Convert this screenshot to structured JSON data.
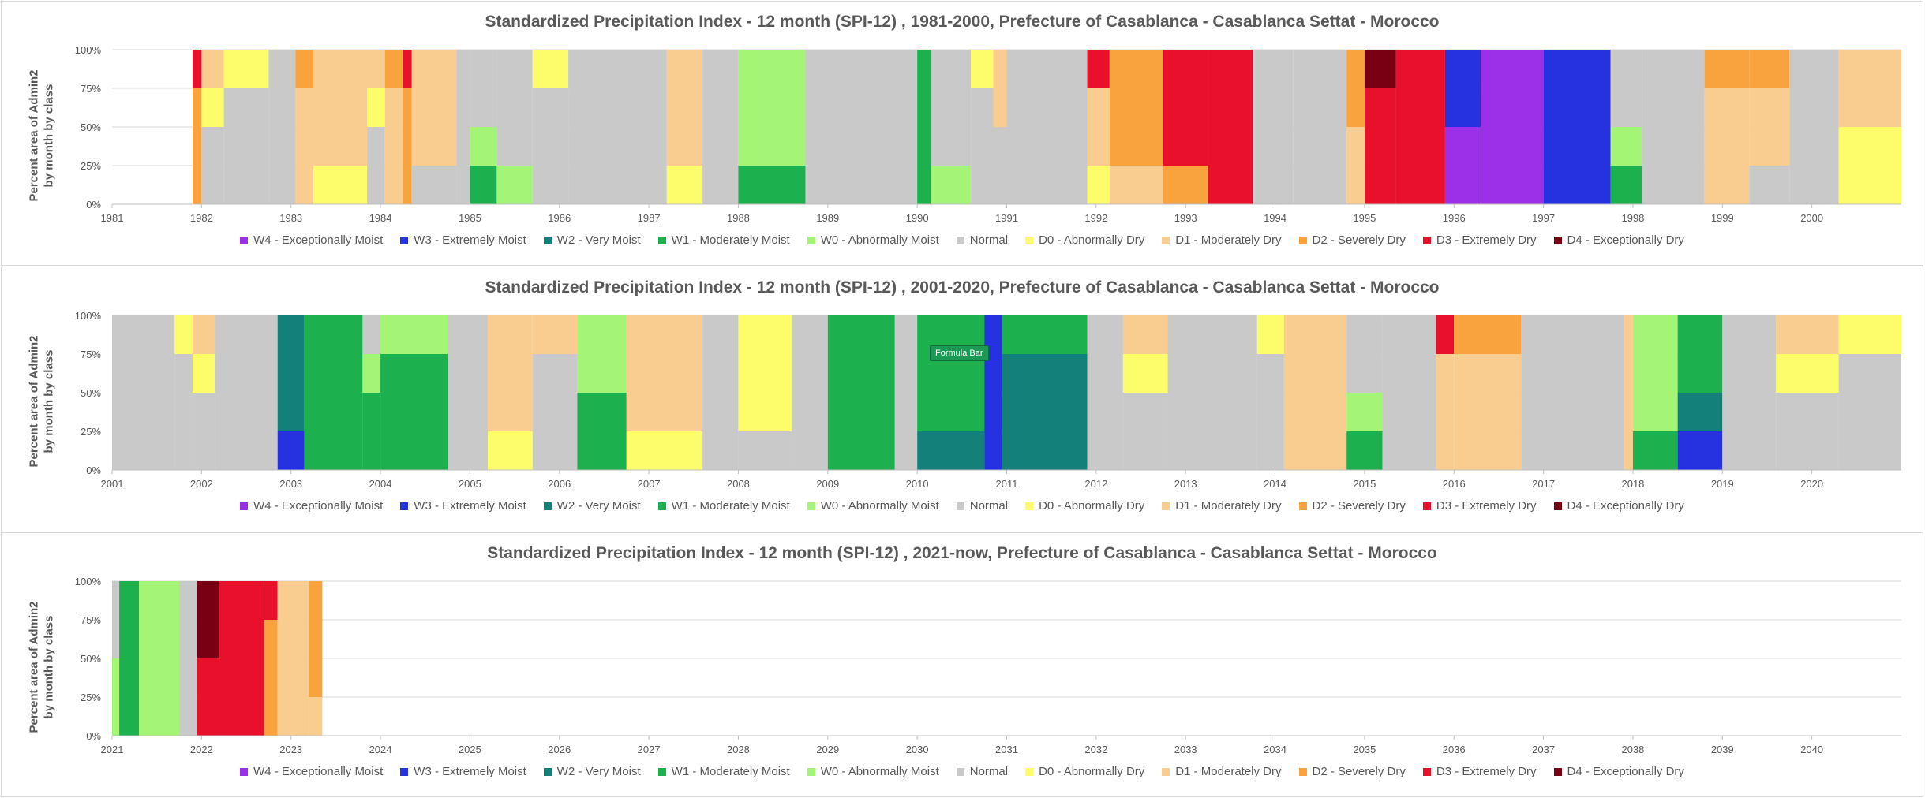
{
  "page": {
    "ylabel_line1": "Percent area of Admin2",
    "ylabel_line2": "by month by class",
    "tooltip": "Formula Bar"
  },
  "legend": [
    {
      "code": "W4",
      "label": "W4 - Exceptionally Moist",
      "color": "#9b30e8"
    },
    {
      "code": "W3",
      "label": "W3 - Extremely Moist",
      "color": "#2631e0"
    },
    {
      "code": "W2",
      "label": "W2 - Very Moist",
      "color": "#13807a"
    },
    {
      "code": "W1",
      "label": "W1 - Moderately Moist",
      "color": "#1db04e"
    },
    {
      "code": "W0",
      "label": "W0 - Abnormally Moist",
      "color": "#a4f576"
    },
    {
      "code": "N",
      "label": "Normal",
      "color": "#c9c9c9"
    },
    {
      "code": "D0",
      "label": "D0 - Abnormally Dry",
      "color": "#fdfc6a"
    },
    {
      "code": "D1",
      "label": "D1 - Moderately Dry",
      "color": "#f9cd8f"
    },
    {
      "code": "D2",
      "label": "D2 - Severely Dry",
      "color": "#f9a33f"
    },
    {
      "code": "D3",
      "label": "D3 - Extremely Dry",
      "color": "#e8102a"
    },
    {
      "code": "D4",
      "label": "D4 - Exceptionally Dry",
      "color": "#780012"
    }
  ],
  "chart_data": [
    {
      "type": "area",
      "stacked": true,
      "title": "Standardized Precipitation Index - 12 month (SPI-12) , 1981-2000, Prefecture of Casablanca - Casablanca Settat - Morocco",
      "ylabel": "Percent area of Admin2 by month by class",
      "ylim": [
        0,
        100
      ],
      "yticks": [
        "0%",
        "25%",
        "50%",
        "75%",
        "100%"
      ],
      "xlim": [
        1981,
        2001
      ],
      "xticks": [
        "1981",
        "1982",
        "1983",
        "1984",
        "1985",
        "1986",
        "1987",
        "1988",
        "1989",
        "1990",
        "1991",
        "1992",
        "1993",
        "1994",
        "1995",
        "1996",
        "1997",
        "1998",
        "1999",
        "2000"
      ],
      "grid": true,
      "legend_position": "bottom",
      "periods": [
        {
          "from": 1981.0,
          "to": 1981.9,
          "classes": {}
        },
        {
          "from": 1981.9,
          "to": 1982.0,
          "classes": {
            "D2": 75,
            "D3": 25
          }
        },
        {
          "from": 1982.0,
          "to": 1982.25,
          "classes": {
            "N": 50,
            "D0": 25,
            "D1": 25
          }
        },
        {
          "from": 1982.25,
          "to": 1982.75,
          "classes": {
            "N": 75,
            "D0": 25
          }
        },
        {
          "from": 1982.75,
          "to": 1983.05,
          "classes": {
            "N": 100
          }
        },
        {
          "from": 1983.05,
          "to": 1983.25,
          "classes": {
            "D1": 75,
            "D2": 25
          }
        },
        {
          "from": 1983.25,
          "to": 1983.85,
          "classes": {
            "D0": 25,
            "D1": 75
          }
        },
        {
          "from": 1983.85,
          "to": 1984.05,
          "classes": {
            "N": 50,
            "D0": 25,
            "D1": 25
          }
        },
        {
          "from": 1984.05,
          "to": 1984.25,
          "classes": {
            "D1": 75,
            "D2": 25
          }
        },
        {
          "from": 1984.25,
          "to": 1984.35,
          "classes": {
            "D2": 75,
            "D3": 25
          }
        },
        {
          "from": 1984.35,
          "to": 1984.85,
          "classes": {
            "N": 25,
            "D1": 75
          }
        },
        {
          "from": 1984.85,
          "to": 1985.0,
          "classes": {
            "N": 100
          }
        },
        {
          "from": 1985.0,
          "to": 1985.3,
          "classes": {
            "W1": 25,
            "W0": 25,
            "N": 50
          }
        },
        {
          "from": 1985.3,
          "to": 1985.7,
          "classes": {
            "W0": 25,
            "N": 75
          }
        },
        {
          "from": 1985.7,
          "to": 1986.1,
          "classes": {
            "N": 75,
            "D0": 25
          }
        },
        {
          "from": 1986.1,
          "to": 1987.2,
          "classes": {
            "N": 100
          }
        },
        {
          "from": 1987.2,
          "to": 1987.6,
          "classes": {
            "D0": 25,
            "D1": 75
          }
        },
        {
          "from": 1987.6,
          "to": 1988.0,
          "classes": {
            "N": 100
          }
        },
        {
          "from": 1988.0,
          "to": 1988.75,
          "classes": {
            "W1": 25,
            "W0": 75
          }
        },
        {
          "from": 1988.75,
          "to": 1990.0,
          "classes": {
            "N": 100
          }
        },
        {
          "from": 1990.0,
          "to": 1990.15,
          "classes": {
            "W1": 100
          }
        },
        {
          "from": 1990.15,
          "to": 1990.6,
          "classes": {
            "W0": 25,
            "N": 75
          }
        },
        {
          "from": 1990.6,
          "to": 1990.85,
          "classes": {
            "N": 75,
            "D0": 25
          }
        },
        {
          "from": 1990.85,
          "to": 1991.0,
          "classes": {
            "N": 50,
            "D1": 50
          }
        },
        {
          "from": 1991.0,
          "to": 1991.9,
          "classes": {
            "N": 100
          }
        },
        {
          "from": 1991.9,
          "to": 1992.15,
          "classes": {
            "D0": 25,
            "D1": 50,
            "D3": 25
          }
        },
        {
          "from": 1992.15,
          "to": 1992.75,
          "classes": {
            "D2": 75,
            "D1": 25
          }
        },
        {
          "from": 1992.75,
          "to": 1993.25,
          "classes": {
            "D3": 75,
            "D2": 25
          }
        },
        {
          "from": 1993.25,
          "to": 1993.75,
          "classes": {
            "D3": 100
          }
        },
        {
          "from": 1993.75,
          "to": 1994.2,
          "classes": {
            "N": 100
          }
        },
        {
          "from": 1994.2,
          "to": 1994.8,
          "classes": {
            "N": 100
          }
        },
        {
          "from": 1994.8,
          "to": 1995.0,
          "classes": {
            "D2": 50,
            "D1": 50
          }
        },
        {
          "from": 1995.0,
          "to": 1995.35,
          "classes": {
            "D3": 75,
            "D4": 25
          }
        },
        {
          "from": 1995.35,
          "to": 1995.9,
          "classes": {
            "D3": 100
          }
        },
        {
          "from": 1995.9,
          "to": 1996.3,
          "classes": {
            "W4": 50,
            "W3": 50
          }
        },
        {
          "from": 1996.3,
          "to": 1997.0,
          "classes": {
            "W4": 100
          }
        },
        {
          "from": 1997.0,
          "to": 1997.75,
          "classes": {
            "W3": 100
          }
        },
        {
          "from": 1997.75,
          "to": 1998.1,
          "classes": {
            "W1": 25,
            "W0": 25,
            "N": 50
          }
        },
        {
          "from": 1998.1,
          "to": 1998.8,
          "classes": {
            "N": 100
          }
        },
        {
          "from": 1998.8,
          "to": 1999.3,
          "classes": {
            "D1": 75,
            "D2": 25
          }
        },
        {
          "from": 1999.3,
          "to": 1999.75,
          "classes": {
            "D1": 50,
            "D2": 25,
            "N": 25
          }
        },
        {
          "from": 1999.75,
          "to": 2000.3,
          "classes": {
            "N": 100
          }
        },
        {
          "from": 2000.3,
          "to": 2001.0,
          "classes": {
            "D0": 50,
            "D1": 50
          }
        }
      ]
    },
    {
      "type": "area",
      "stacked": true,
      "title": "Standardized Precipitation Index - 12 month (SPI-12) , 2001-2020, Prefecture of Casablanca - Casablanca Settat - Morocco",
      "ylabel": "Percent area of Admin2 by month by class",
      "ylim": [
        0,
        100
      ],
      "yticks": [
        "0%",
        "25%",
        "50%",
        "75%",
        "100%"
      ],
      "xlim": [
        2001,
        2021
      ],
      "xticks": [
        "2001",
        "2002",
        "2003",
        "2004",
        "2005",
        "2006",
        "2007",
        "2008",
        "2009",
        "2010",
        "2011",
        "2012",
        "2013",
        "2014",
        "2015",
        "2016",
        "2017",
        "2018",
        "2019",
        "2020"
      ],
      "grid": true,
      "legend_position": "bottom",
      "periods": [
        {
          "from": 2001.0,
          "to": 2001.7,
          "classes": {
            "N": 100
          }
        },
        {
          "from": 2001.7,
          "to": 2001.9,
          "classes": {
            "N": 75,
            "D0": 25
          }
        },
        {
          "from": 2001.9,
          "to": 2002.15,
          "classes": {
            "D0": 25,
            "D1": 25,
            "N": 50
          }
        },
        {
          "from": 2002.15,
          "to": 2002.85,
          "classes": {
            "N": 100
          }
        },
        {
          "from": 2002.85,
          "to": 2003.15,
          "classes": {
            "W3": 25,
            "W2": 75
          }
        },
        {
          "from": 2003.15,
          "to": 2003.8,
          "classes": {
            "W1": 100
          }
        },
        {
          "from": 2003.8,
          "to": 2004.0,
          "classes": {
            "W0": 25,
            "W1": 50,
            "N": 25
          }
        },
        {
          "from": 2004.0,
          "to": 2004.75,
          "classes": {
            "W1": 75,
            "W0": 25
          }
        },
        {
          "from": 2004.75,
          "to": 2005.2,
          "classes": {
            "N": 100
          }
        },
        {
          "from": 2005.2,
          "to": 2005.7,
          "classes": {
            "D0": 25,
            "D1": 75
          }
        },
        {
          "from": 2005.7,
          "to": 2006.2,
          "classes": {
            "N": 75,
            "D1": 25
          }
        },
        {
          "from": 2006.2,
          "to": 2006.75,
          "classes": {
            "W1": 50,
            "W0": 50
          }
        },
        {
          "from": 2006.75,
          "to": 2007.6,
          "classes": {
            "D0": 25,
            "D1": 75
          }
        },
        {
          "from": 2007.6,
          "to": 2008.0,
          "classes": {
            "N": 100
          }
        },
        {
          "from": 2008.0,
          "to": 2008.6,
          "classes": {
            "N": 25,
            "D0": 75
          }
        },
        {
          "from": 2008.6,
          "to": 2009.0,
          "classes": {
            "N": 100
          }
        },
        {
          "from": 2009.0,
          "to": 2009.75,
          "classes": {
            "W1": 100
          }
        },
        {
          "from": 2009.75,
          "to": 2010.0,
          "classes": {
            "N": 100
          }
        },
        {
          "from": 2010.0,
          "to": 2010.75,
          "classes": {
            "W1": 75,
            "W2": 25
          }
        },
        {
          "from": 2010.75,
          "to": 2010.95,
          "classes": {
            "W3": 100
          }
        },
        {
          "from": 2010.95,
          "to": 2011.9,
          "classes": {
            "W2": 75,
            "W1": 25
          }
        },
        {
          "from": 2011.9,
          "to": 2012.3,
          "classes": {
            "N": 100
          }
        },
        {
          "from": 2012.3,
          "to": 2012.8,
          "classes": {
            "D0": 25,
            "D1": 25,
            "N": 50
          }
        },
        {
          "from": 2012.8,
          "to": 2013.8,
          "classes": {
            "N": 100
          }
        },
        {
          "from": 2013.8,
          "to": 2014.1,
          "classes": {
            "N": 75,
            "D0": 25
          }
        },
        {
          "from": 2014.1,
          "to": 2014.8,
          "classes": {
            "D1": 100
          }
        },
        {
          "from": 2014.8,
          "to": 2015.2,
          "classes": {
            "W1": 25,
            "W0": 25,
            "N": 50
          }
        },
        {
          "from": 2015.2,
          "to": 2015.8,
          "classes": {
            "N": 100
          }
        },
        {
          "from": 2015.8,
          "to": 2016.0,
          "classes": {
            "D1": 75,
            "D3": 25
          }
        },
        {
          "from": 2016.0,
          "to": 2016.75,
          "classes": {
            "D2": 25,
            "D1": 75
          }
        },
        {
          "from": 2016.75,
          "to": 2017.9,
          "classes": {
            "N": 100
          }
        },
        {
          "from": 2017.9,
          "to": 2018.0,
          "classes": {
            "D1": 100
          }
        },
        {
          "from": 2018.0,
          "to": 2018.5,
          "classes": {
            "W1": 25,
            "W0": 75
          }
        },
        {
          "from": 2018.5,
          "to": 2019.0,
          "classes": {
            "W2": 25,
            "W1": 50,
            "W3": 25
          }
        },
        {
          "from": 2019.0,
          "to": 2019.6,
          "classes": {
            "N": 100
          }
        },
        {
          "from": 2019.6,
          "to": 2020.3,
          "classes": {
            "N": 50,
            "D0": 25,
            "D1": 25
          }
        },
        {
          "from": 2020.3,
          "to": 2021.0,
          "classes": {
            "N": 75,
            "D0": 25
          }
        }
      ]
    },
    {
      "type": "area",
      "stacked": true,
      "title": "Standardized Precipitation Index - 12 month (SPI-12) , 2021-now, Prefecture of Casablanca - Casablanca Settat - Morocco",
      "ylabel": "Percent area of Admin2 by month by class",
      "ylim": [
        0,
        100
      ],
      "yticks": [
        "0%",
        "25%",
        "50%",
        "75%",
        "100%"
      ],
      "xlim": [
        2021,
        2041
      ],
      "xticks": [
        "2021",
        "2022",
        "2023",
        "2024",
        "2025",
        "2026",
        "2027",
        "2028",
        "2029",
        "2030",
        "2031",
        "2032",
        "2033",
        "2034",
        "2035",
        "2036",
        "2037",
        "2038",
        "2039",
        "2040"
      ],
      "grid": true,
      "legend_position": "bottom",
      "periods": [
        {
          "from": 2021.0,
          "to": 2021.08,
          "classes": {
            "W0": 50,
            "N": 50
          }
        },
        {
          "from": 2021.08,
          "to": 2021.3,
          "classes": {
            "W1": 100
          }
        },
        {
          "from": 2021.3,
          "to": 2021.75,
          "classes": {
            "W0": 100
          }
        },
        {
          "from": 2021.75,
          "to": 2021.95,
          "classes": {
            "N": 100
          }
        },
        {
          "from": 2021.95,
          "to": 2022.2,
          "classes": {
            "D3": 50,
            "D4": 50
          }
        },
        {
          "from": 2022.2,
          "to": 2022.7,
          "classes": {
            "D3": 100
          }
        },
        {
          "from": 2022.7,
          "to": 2022.85,
          "classes": {
            "D3": 25,
            "D2": 75
          }
        },
        {
          "from": 2022.85,
          "to": 2023.2,
          "classes": {
            "D1": 100
          }
        },
        {
          "from": 2023.2,
          "to": 2023.35,
          "classes": {
            "D2": 75,
            "D1": 25
          }
        }
      ]
    }
  ]
}
